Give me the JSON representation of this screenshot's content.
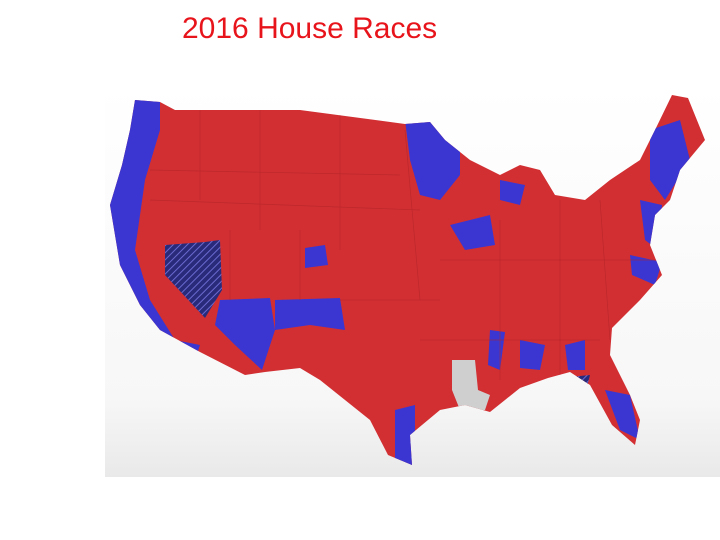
{
  "header": {
    "title": "2016 House Races"
  }
}
